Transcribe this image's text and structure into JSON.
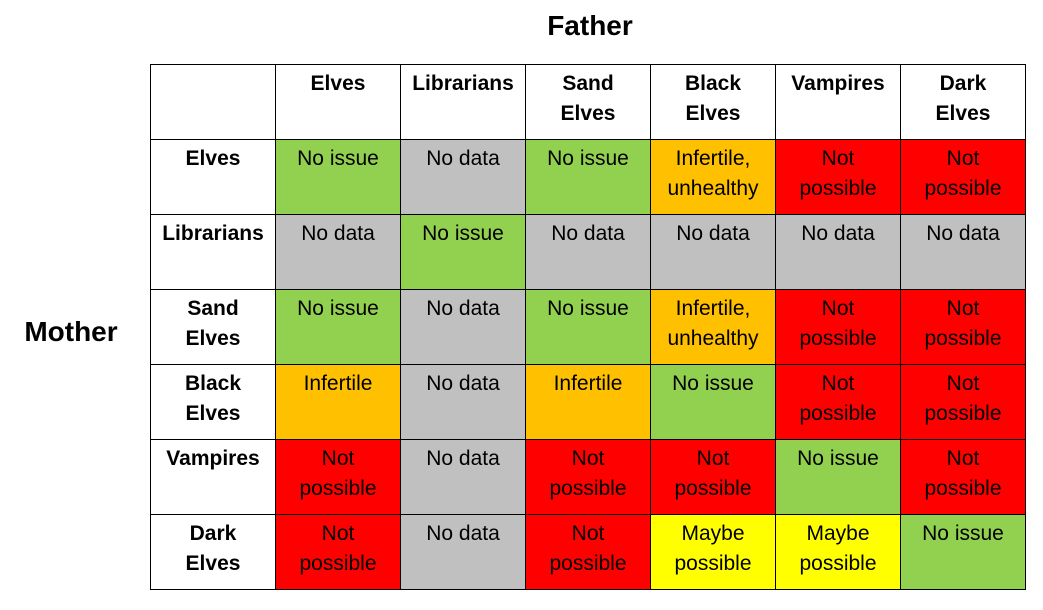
{
  "axis": {
    "columns_label": "Father",
    "rows_label": "Mother"
  },
  "colors": {
    "green": "#92d050",
    "gray": "#c0c0c0",
    "orange": "#ffc000",
    "red": "#ff0000",
    "yellow": "#ffff00"
  },
  "columns": [
    "Elves",
    "Librarians",
    "Sand\nElves",
    "Black\nElves",
    "Vampires",
    "Dark\nElves"
  ],
  "rows": [
    {
      "label": "Elves",
      "cells": [
        {
          "text": "No issue",
          "color": "green"
        },
        {
          "text": "No data",
          "color": "gray"
        },
        {
          "text": "No issue",
          "color": "green"
        },
        {
          "text": "Infertile,\nunhealthy",
          "color": "orange"
        },
        {
          "text": "Not\npossible",
          "color": "red"
        },
        {
          "text": "Not\npossible",
          "color": "red"
        }
      ]
    },
    {
      "label": "Librarians",
      "cells": [
        {
          "text": "No data",
          "color": "gray"
        },
        {
          "text": "No issue",
          "color": "green"
        },
        {
          "text": "No data",
          "color": "gray"
        },
        {
          "text": "No data",
          "color": "gray"
        },
        {
          "text": "No data",
          "color": "gray"
        },
        {
          "text": "No data",
          "color": "gray"
        }
      ]
    },
    {
      "label": "Sand\nElves",
      "cells": [
        {
          "text": "No issue",
          "color": "green"
        },
        {
          "text": "No data",
          "color": "gray"
        },
        {
          "text": "No issue",
          "color": "green"
        },
        {
          "text": "Infertile,\nunhealthy",
          "color": "orange"
        },
        {
          "text": "Not\npossible",
          "color": "red"
        },
        {
          "text": "Not\npossible",
          "color": "red"
        }
      ]
    },
    {
      "label": "Black\nElves",
      "cells": [
        {
          "text": "Infertile",
          "color": "orange"
        },
        {
          "text": "No data",
          "color": "gray"
        },
        {
          "text": "Infertile",
          "color": "orange"
        },
        {
          "text": "No issue",
          "color": "green"
        },
        {
          "text": "Not\npossible",
          "color": "red"
        },
        {
          "text": "Not\npossible",
          "color": "red"
        }
      ]
    },
    {
      "label": "Vampires",
      "cells": [
        {
          "text": "Not\npossible",
          "color": "red"
        },
        {
          "text": "No data",
          "color": "gray"
        },
        {
          "text": "Not\npossible",
          "color": "red"
        },
        {
          "text": "Not\npossible",
          "color": "red"
        },
        {
          "text": "No issue",
          "color": "green"
        },
        {
          "text": "Not\npossible",
          "color": "red"
        }
      ]
    },
    {
      "label": "Dark\nElves",
      "cells": [
        {
          "text": "Not\npossible",
          "color": "red"
        },
        {
          "text": "No data",
          "color": "gray"
        },
        {
          "text": "Not\npossible",
          "color": "red"
        },
        {
          "text": "Maybe\npossible",
          "color": "yellow"
        },
        {
          "text": "Maybe\npossible",
          "color": "yellow"
        },
        {
          "text": "No issue",
          "color": "green"
        }
      ]
    }
  ]
}
